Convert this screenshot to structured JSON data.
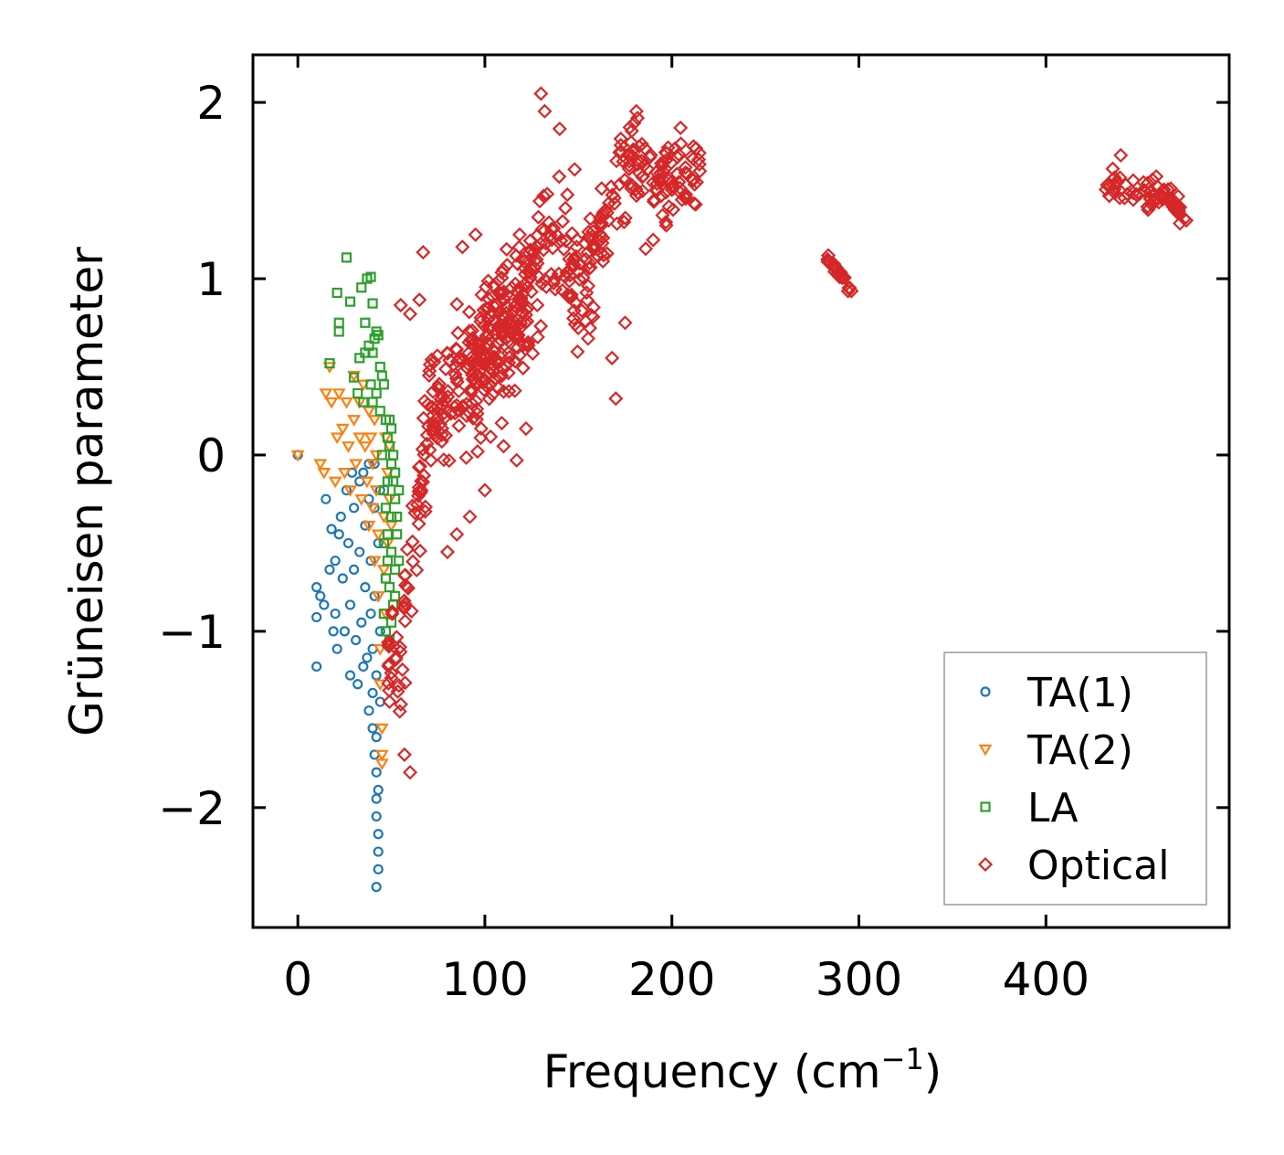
{
  "chart_data": {
    "type": "scatter",
    "title": "",
    "xlabel": "Frequency (cm",
    "xlabel_sup": "−1",
    "xlabel_end": ")",
    "ylabel": "Grüneisen parameter",
    "xlim": [
      -24,
      498
    ],
    "ylim": [
      -2.68,
      2.27
    ],
    "xticks": [
      0,
      100,
      200,
      300,
      400
    ],
    "xtick_labels": [
      "0",
      "100",
      "200",
      "300",
      "400"
    ],
    "yticks": [
      -2,
      -1,
      0,
      1,
      2
    ],
    "ytick_labels": [
      "−2",
      "−1",
      "0",
      "1",
      "2"
    ],
    "grid": false,
    "legend_position": "lower-right",
    "series": [
      {
        "name": "TA(1)",
        "marker": "circle",
        "color": "#1f77b4",
        "points": [
          [
            0,
            0
          ],
          [
            10,
            -0.75
          ],
          [
            12,
            -0.8
          ],
          [
            14,
            -0.85
          ],
          [
            10,
            -0.92
          ],
          [
            10,
            -1.2
          ],
          [
            15,
            -0.25
          ],
          [
            18,
            -0.42
          ],
          [
            20,
            -0.6
          ],
          [
            20,
            -0.9
          ],
          [
            21,
            -1.1
          ],
          [
            22,
            -0.45
          ],
          [
            24,
            -0.7
          ],
          [
            25,
            -1.0
          ],
          [
            26,
            -0.2
          ],
          [
            27,
            -0.5
          ],
          [
            28,
            -0.85
          ],
          [
            28,
            -1.25
          ],
          [
            30,
            -0.3
          ],
          [
            30,
            -0.65
          ],
          [
            31,
            -1.05
          ],
          [
            32,
            -1.3
          ],
          [
            33,
            -0.15
          ],
          [
            33,
            -0.55
          ],
          [
            34,
            -0.95
          ],
          [
            35,
            -1.2
          ],
          [
            36,
            -0.4
          ],
          [
            36,
            -0.75
          ],
          [
            37,
            -1.15
          ],
          [
            38,
            -1.45
          ],
          [
            38,
            -0.25
          ],
          [
            39,
            -0.6
          ],
          [
            39,
            -0.9
          ],
          [
            40,
            -1.1
          ],
          [
            40,
            -1.35
          ],
          [
            40,
            -1.55
          ],
          [
            41,
            -1.7
          ],
          [
            41,
            -0.3
          ],
          [
            41,
            -0.8
          ],
          [
            42,
            -1.25
          ],
          [
            42,
            -1.6
          ],
          [
            42,
            -1.8
          ],
          [
            42,
            -1.95
          ],
          [
            42,
            -2.05
          ],
          [
            43,
            -2.15
          ],
          [
            43,
            -2.25
          ],
          [
            43,
            -2.35
          ],
          [
            42,
            -2.45
          ],
          [
            43,
            -1.9
          ],
          [
            43,
            -0.5
          ],
          [
            44,
            -1.0
          ],
          [
            44,
            -1.4
          ],
          [
            44,
            -0.2
          ],
          [
            41,
            -0.05
          ],
          [
            38,
            -0.05
          ],
          [
            35,
            -0.1
          ],
          [
            29,
            -0.1
          ],
          [
            23,
            -0.35
          ],
          [
            17,
            -0.65
          ],
          [
            19,
            -1.0
          ]
        ]
      },
      {
        "name": "TA(2)",
        "marker": "triangle",
        "color": "#ff7f0e",
        "points": [
          [
            0,
            0
          ],
          [
            12,
            -0.05
          ],
          [
            14,
            -0.1
          ],
          [
            15,
            0.35
          ],
          [
            17,
            0.5
          ],
          [
            18,
            0.3
          ],
          [
            20,
            -0.15
          ],
          [
            21,
            0.1
          ],
          [
            22,
            0.35
          ],
          [
            24,
            0.15
          ],
          [
            25,
            -0.1
          ],
          [
            26,
            0.3
          ],
          [
            27,
            0.05
          ],
          [
            28,
            -0.2
          ],
          [
            30,
            0.45
          ],
          [
            30,
            0.2
          ],
          [
            31,
            -0.05
          ],
          [
            33,
            0.3
          ],
          [
            33,
            0.1
          ],
          [
            34,
            -0.25
          ],
          [
            35,
            0.4
          ],
          [
            36,
            0.05
          ],
          [
            37,
            -0.15
          ],
          [
            38,
            0.25
          ],
          [
            38,
            -0.4
          ],
          [
            39,
            0.1
          ],
          [
            40,
            -0.05
          ],
          [
            40,
            -0.3
          ],
          [
            41,
            0.2
          ],
          [
            41,
            -0.6
          ],
          [
            42,
            0.0
          ],
          [
            42,
            -0.2
          ],
          [
            43,
            -0.45
          ],
          [
            43,
            -0.8
          ],
          [
            44,
            -1.1
          ],
          [
            44,
            -1.3
          ],
          [
            45,
            -1.55
          ],
          [
            45,
            -1.7
          ],
          [
            45,
            -1.75
          ],
          [
            46,
            -0.35
          ],
          [
            46,
            -0.65
          ],
          [
            47,
            0.1
          ],
          [
            47,
            -0.9
          ],
          [
            48,
            -0.1
          ],
          [
            48,
            -0.5
          ],
          [
            49,
            0.05
          ],
          [
            49,
            -0.25
          ],
          [
            50,
            -0.4
          ]
        ]
      },
      {
        "name": "LA",
        "marker": "square",
        "color": "#2ca02c",
        "points": [
          [
            26,
            1.12
          ],
          [
            21,
            0.92
          ],
          [
            22,
            0.75
          ],
          [
            22,
            0.7
          ],
          [
            28,
            0.87
          ],
          [
            30,
            0.44
          ],
          [
            17,
            0.52
          ],
          [
            34,
            0.95
          ],
          [
            37,
            1.0
          ],
          [
            39,
            1.01
          ],
          [
            40,
            0.86
          ],
          [
            36,
            0.75
          ],
          [
            38,
            0.62
          ],
          [
            40,
            0.58
          ],
          [
            41,
            0.66
          ],
          [
            42,
            0.7
          ],
          [
            43,
            0.68
          ],
          [
            44,
            0.5
          ],
          [
            45,
            0.45
          ],
          [
            40,
            0.3
          ],
          [
            42,
            0.35
          ],
          [
            46,
            0.4
          ],
          [
            47,
            0.2
          ],
          [
            48,
            0.1
          ],
          [
            49,
            0.05
          ],
          [
            50,
            -0.05
          ],
          [
            51,
            -0.15
          ],
          [
            52,
            -0.25
          ],
          [
            53,
            -0.35
          ],
          [
            48,
            -0.45
          ],
          [
            50,
            -0.55
          ],
          [
            52,
            -0.65
          ],
          [
            49,
            -0.75
          ],
          [
            51,
            -0.85
          ],
          [
            50,
            -0.95
          ],
          [
            49,
            -1.05
          ],
          [
            47,
            -1.0
          ],
          [
            46,
            -0.9
          ],
          [
            47,
            -0.7
          ],
          [
            46,
            -0.5
          ],
          [
            47,
            -0.3
          ],
          [
            48,
            -0.15
          ],
          [
            50,
            0.15
          ],
          [
            51,
            0.0
          ],
          [
            52,
            -0.1
          ],
          [
            53,
            -0.45
          ],
          [
            54,
            -0.2
          ],
          [
            54,
            -0.6
          ],
          [
            52,
            -0.8
          ],
          [
            50,
            -0.35
          ],
          [
            49,
            0.2
          ],
          [
            48,
            -0.6
          ],
          [
            46,
            -0.2
          ],
          [
            45,
            0.0
          ],
          [
            44,
            0.25
          ],
          [
            36,
            0.58
          ],
          [
            33,
            0.55
          ],
          [
            32,
            0.35
          ],
          [
            35,
            0.3
          ],
          [
            39,
            0.4
          ]
        ]
      },
      {
        "name": "Optical",
        "marker": "diamond",
        "color": "#d62728",
        "clusters": [
          {
            "f_range": [
              48,
              125
            ],
            "g_range": [
              -1.8,
              1.25
            ],
            "trend": [
              [
                55,
                -1.1
              ],
              [
                70,
                0.2
              ],
              [
                90,
                0.5
              ],
              [
                110,
                0.8
              ],
              [
                125,
                0.9
              ]
            ],
            "spread": 0.45,
            "count": 260
          },
          {
            "f_range": [
              90,
              160
            ],
            "g_range": [
              -0.05,
              2.05
            ],
            "trend": [
              [
                95,
                0.4
              ],
              [
                110,
                0.6
              ],
              [
                125,
                0.9
              ],
              [
                135,
                1.3
              ],
              [
                150,
                1.0
              ],
              [
                160,
                0.9
              ]
            ],
            "spread": 0.45,
            "count": 180
          },
          {
            "f_range": [
              155,
              215
            ],
            "g_range": [
              0.35,
              1.95
            ],
            "trend": [
              [
                160,
                1.2
              ],
              [
                170,
                1.5
              ],
              [
                180,
                1.7
              ],
              [
                195,
                1.55
              ],
              [
                214,
                1.62
              ]
            ],
            "spread": 0.3,
            "count": 140
          },
          {
            "f_range": [
              283,
              296
            ],
            "g_range": [
              0.92,
              1.15
            ],
            "trend": [
              [
                283,
                1.12
              ],
              [
                296,
                0.93
              ]
            ],
            "spread": 0.03,
            "count": 24
          },
          {
            "f_range": [
              432,
              476
            ],
            "g_range": [
              1.3,
              1.7
            ],
            "trend": [
              [
                432,
                1.55
              ],
              [
                450,
                1.5
              ],
              [
                465,
                1.45
              ],
              [
                476,
                1.34
              ]
            ],
            "spread": 0.1,
            "count": 70
          }
        ],
        "extra_points": [
          [
            55,
            0.85
          ],
          [
            60,
            0.8
          ],
          [
            65,
            0.88
          ],
          [
            67,
            1.15
          ],
          [
            60,
            -1.8
          ],
          [
            57,
            -1.7
          ],
          [
            117,
            -0.03
          ],
          [
            130,
            2.05
          ],
          [
            132,
            1.95
          ],
          [
            140,
            1.85
          ],
          [
            148,
            1.62
          ],
          [
            170,
            0.32
          ],
          [
            168,
            0.55
          ],
          [
            181,
            1.95
          ],
          [
            190,
            1.22
          ],
          [
            186,
            1.17
          ],
          [
            88,
            1.18
          ],
          [
            95,
            1.25
          ],
          [
            80,
            -0.55
          ],
          [
            85,
            -0.45
          ],
          [
            92,
            -0.35
          ],
          [
            100,
            -0.2
          ],
          [
            110,
            0.05
          ],
          [
            122,
            0.15
          ],
          [
            162,
            1.3
          ],
          [
            175,
            0.75
          ],
          [
            440,
            1.7
          ],
          [
            459,
            1.58
          ],
          [
            474,
            1.34
          ],
          [
            296,
            0.93
          ]
        ]
      }
    ]
  }
}
